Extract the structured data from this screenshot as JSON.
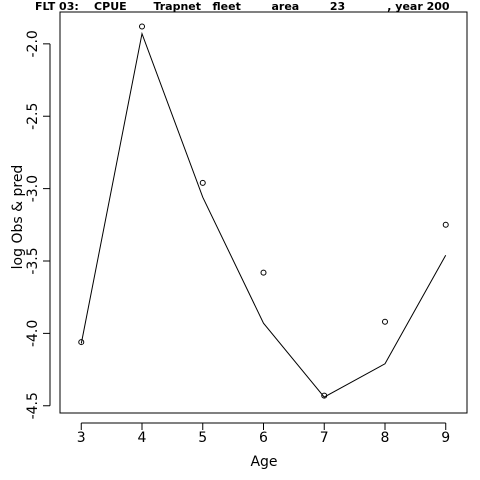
{
  "chart_data": {
    "type": "line",
    "title": "FLT 03:    CPUE       Trapnet   fleet        area        23           , year 200",
    "xlabel": "Age",
    "ylabel": "log Obs & pred",
    "xlim": [
      2.65,
      9.35
    ],
    "ylim": [
      -4.55,
      -1.78
    ],
    "x_ticks": [
      3,
      4,
      5,
      6,
      7,
      8,
      9
    ],
    "x_tick_labels": [
      "3",
      "4",
      "5",
      "6",
      "7",
      "8",
      "9"
    ],
    "y_ticks": [
      -2.0,
      -2.5,
      -3.0,
      -3.5,
      -4.0,
      -4.5
    ],
    "y_tick_labels": [
      "-2.0",
      "-2.5",
      "-3.0",
      "-3.5",
      "-4.0",
      "-4.5"
    ],
    "grid": false,
    "series": [
      {
        "style": "points",
        "x": [
          3,
          4,
          5,
          6,
          7,
          8,
          9
        ],
        "values": [
          -4.06,
          -1.88,
          -2.96,
          -3.58,
          -4.43,
          -3.92,
          -3.25
        ]
      },
      {
        "style": "line",
        "x": [
          3,
          4,
          5,
          6,
          7,
          8,
          9
        ],
        "values": [
          -4.07,
          -1.93,
          -3.06,
          -3.93,
          -4.44,
          -4.21,
          -3.46
        ]
      }
    ]
  }
}
